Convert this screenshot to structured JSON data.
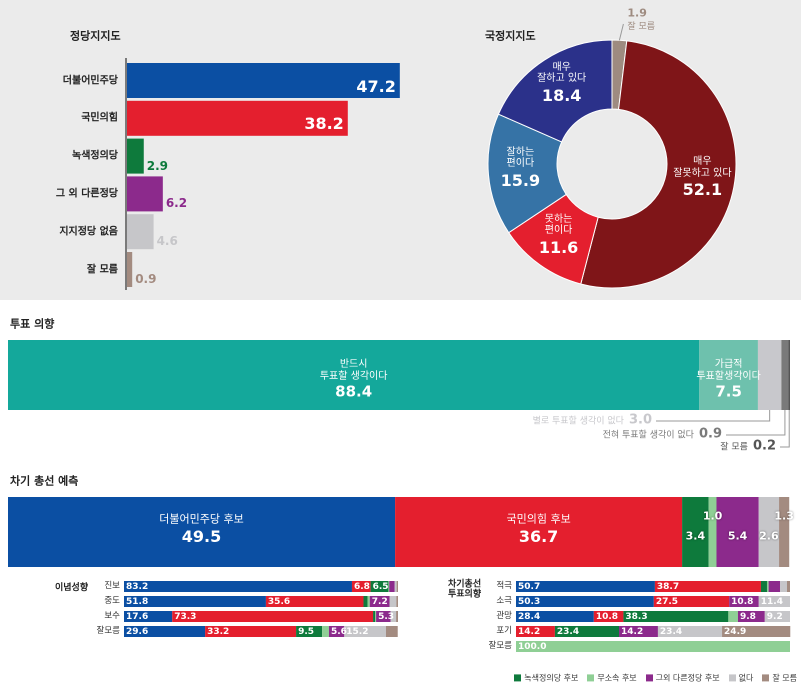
{
  "chart_data": [
    {
      "type": "bar",
      "orientation": "horizontal",
      "title": "정당지지도",
      "categories": [
        "더불어민주당",
        "국민의힘",
        "녹색정의당",
        "그 외 다른정당",
        "지지정당 없음",
        "잘 모름"
      ],
      "values": [
        47.2,
        38.2,
        2.9,
        6.2,
        4.6,
        0.9
      ],
      "colors": [
        "#0b4fa3",
        "#e41f2e",
        "#0e7a3c",
        "#8c2a8c",
        "#c6c6c9",
        "#a38b80"
      ],
      "xlim": [
        0,
        50
      ]
    },
    {
      "type": "pie",
      "donut": true,
      "title": "국정지지도",
      "categories": [
        "잘 모름",
        "매우\n잘못하고 있다",
        "못하는\n편이다",
        "잘하는\n편이다",
        "매우\n잘하고 있다"
      ],
      "values": [
        1.9,
        52.1,
        11.6,
        15.9,
        18.4
      ],
      "colors": [
        "#9e8b80",
        "#7f1518",
        "#e41f2e",
        "#3673a6",
        "#2b318a"
      ]
    },
    {
      "type": "bar",
      "stacked": true,
      "orientation": "horizontal",
      "title": "투표 의향",
      "categories": [
        "반드시\n투표할 생각이다",
        "가급적\n투표할생각이다",
        "별로 투표할 생각이 없다",
        "전혀 투표할 생각이 없다",
        "잘 모름"
      ],
      "values": [
        88.4,
        7.5,
        3,
        0.9,
        0.2
      ],
      "value_labels": [
        "88.4",
        "7.5",
        "3.0",
        "0.9",
        "0.2"
      ],
      "colors": [
        "#14a89b",
        "#6ec1ad",
        "#c8c8cc",
        "#7a7a7a",
        "#555555"
      ],
      "xlim": [
        0,
        100
      ]
    },
    {
      "type": "bar",
      "stacked": true,
      "orientation": "horizontal",
      "title": "차기 총선 예측",
      "series": [
        {
          "name": "더불어민주당 후보",
          "color": "#0b4fa3",
          "values": [
            49.5
          ]
        },
        {
          "name": "국민의힘 후보",
          "color": "#e41f2e",
          "values": [
            36.7
          ]
        },
        {
          "name": "녹색정의당 후보",
          "color": "#0e7a3c",
          "values": [
            3.4
          ]
        },
        {
          "name": "무소속 후보",
          "color": "#8fcf95",
          "values": [
            1.0
          ],
          "value_labels": [
            "1.0"
          ]
        },
        {
          "name": "그외 다른정당 후보",
          "color": "#8c2a8c",
          "values": [
            5.4
          ]
        },
        {
          "name": "없다",
          "color": "#c6c6c9",
          "values": [
            2.6
          ]
        },
        {
          "name": "잘 모름",
          "color": "#a38b80",
          "values": [
            1.3
          ]
        }
      ],
      "xlim": [
        0,
        100
      ],
      "legend": "bottom-right"
    },
    {
      "type": "bar",
      "stacked": true,
      "orientation": "horizontal",
      "title": "이념성향",
      "categories": [
        "진보",
        "중도",
        "보수",
        "잘모름"
      ],
      "series": [
        {
          "color": "#0b4fa3",
          "values": [
            83.2,
            51.8,
            17.6,
            29.6
          ],
          "value_labels": [
            "83.2",
            "51.8",
            "17.6",
            "29.6"
          ]
        },
        {
          "color": "#e41f2e",
          "values": [
            6.8,
            35.6,
            73.3,
            33.2
          ],
          "value_labels": [
            "6.8",
            "35.6",
            "73.3",
            "33.2"
          ]
        },
        {
          "color": "#0e7a3c",
          "values": [
            6.5,
            1.5,
            0.8,
            9.5
          ],
          "value_labels": [
            "6.5",
            null,
            null,
            "9.5"
          ]
        },
        {
          "color": "#8fcf95",
          "values": [
            0.3,
            0.8,
            0.3,
            2.5
          ],
          "value_labels": [
            null,
            null,
            null,
            null
          ]
        },
        {
          "color": "#8c2a8c",
          "values": [
            2.0,
            7.2,
            5.3,
            5.6
          ],
          "value_labels": [
            null,
            "7.2",
            "5.3",
            "5.6"
          ]
        },
        {
          "color": "#c6c6c9",
          "values": [
            0.7,
            2.5,
            2.0,
            15.2
          ],
          "value_labels": [
            null,
            null,
            null,
            "15.2"
          ]
        },
        {
          "color": "#a38b80",
          "values": [
            0.5,
            0.6,
            0.7,
            4.3
          ],
          "value_labels": [
            null,
            null,
            null,
            null
          ]
        }
      ],
      "xlim": [
        0,
        100
      ]
    },
    {
      "type": "bar",
      "stacked": true,
      "orientation": "horizontal",
      "title": "차기총선\n투표의향",
      "categories": [
        "적극",
        "소극",
        "관망",
        "포기",
        "잘모름"
      ],
      "series": [
        {
          "color": "#0b4fa3",
          "values": [
            50.7,
            50.3,
            28.4,
            0,
            0
          ],
          "value_labels": [
            "50.7",
            "50.3",
            "28.4",
            null,
            null
          ]
        },
        {
          "color": "#e41f2e",
          "values": [
            38.7,
            27.5,
            10.8,
            14.2,
            0
          ],
          "value_labels": [
            "38.7",
            "27.5",
            "10.8",
            "14.2",
            null
          ]
        },
        {
          "color": "#0e7a3c",
          "values": [
            2.2,
            0,
            38.3,
            23.4,
            0
          ],
          "value_labels": [
            null,
            null,
            "38.3",
            "23.4",
            null
          ]
        },
        {
          "color": "#8fcf95",
          "values": [
            0.6,
            0,
            3.5,
            0,
            100
          ],
          "value_labels": [
            null,
            null,
            null,
            null,
            "100.0"
          ]
        },
        {
          "color": "#8c2a8c",
          "values": [
            4.2,
            10.8,
            9.8,
            14.2,
            0
          ],
          "value_labels": [
            null,
            "10.8",
            "9.8",
            "14.2",
            null
          ]
        },
        {
          "color": "#c6c6c9",
          "values": [
            2.5,
            11.4,
            9.2,
            23.4,
            0
          ],
          "value_labels": [
            null,
            "11.4",
            "9.2",
            "23.4",
            null
          ]
        },
        {
          "color": "#a38b80",
          "values": [
            1.1,
            0,
            0,
            24.9,
            0
          ],
          "value_labels": [
            null,
            null,
            null,
            "24.9",
            null
          ]
        }
      ],
      "xlim": [
        0,
        100
      ]
    }
  ]
}
